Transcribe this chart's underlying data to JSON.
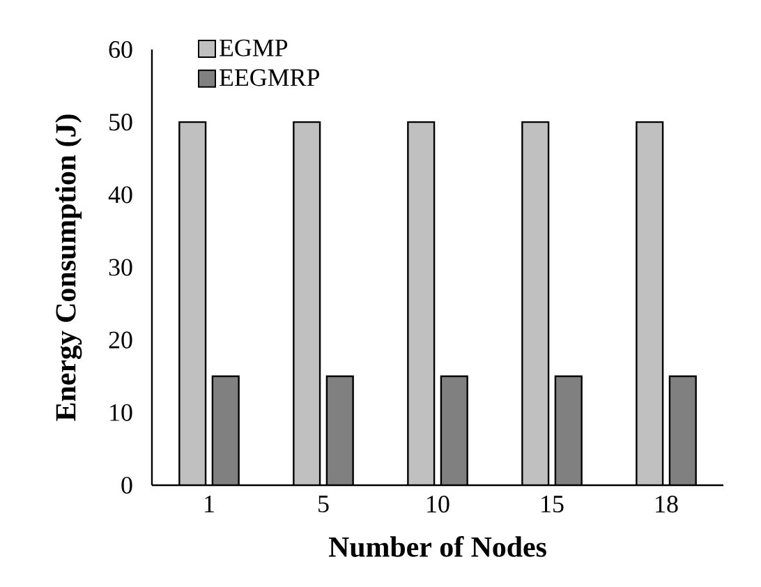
{
  "chart_data": {
    "type": "bar",
    "xlabel": "Number of Nodes",
    "ylabel": "Energy Consumption (J)",
    "categories": [
      "1",
      "5",
      "10",
      "15",
      "18"
    ],
    "series": [
      {
        "name": "EGMP",
        "color": "#c0c0c0",
        "values": [
          50,
          50,
          50,
          50,
          50
        ]
      },
      {
        "name": "EEGMRP",
        "color": "#808080",
        "values": [
          15,
          15,
          15,
          15,
          15
        ]
      }
    ],
    "ylim": [
      0,
      60
    ],
    "yticks": [
      0,
      10,
      20,
      30,
      40,
      50,
      60
    ],
    "grid": false,
    "legend": "top left"
  }
}
